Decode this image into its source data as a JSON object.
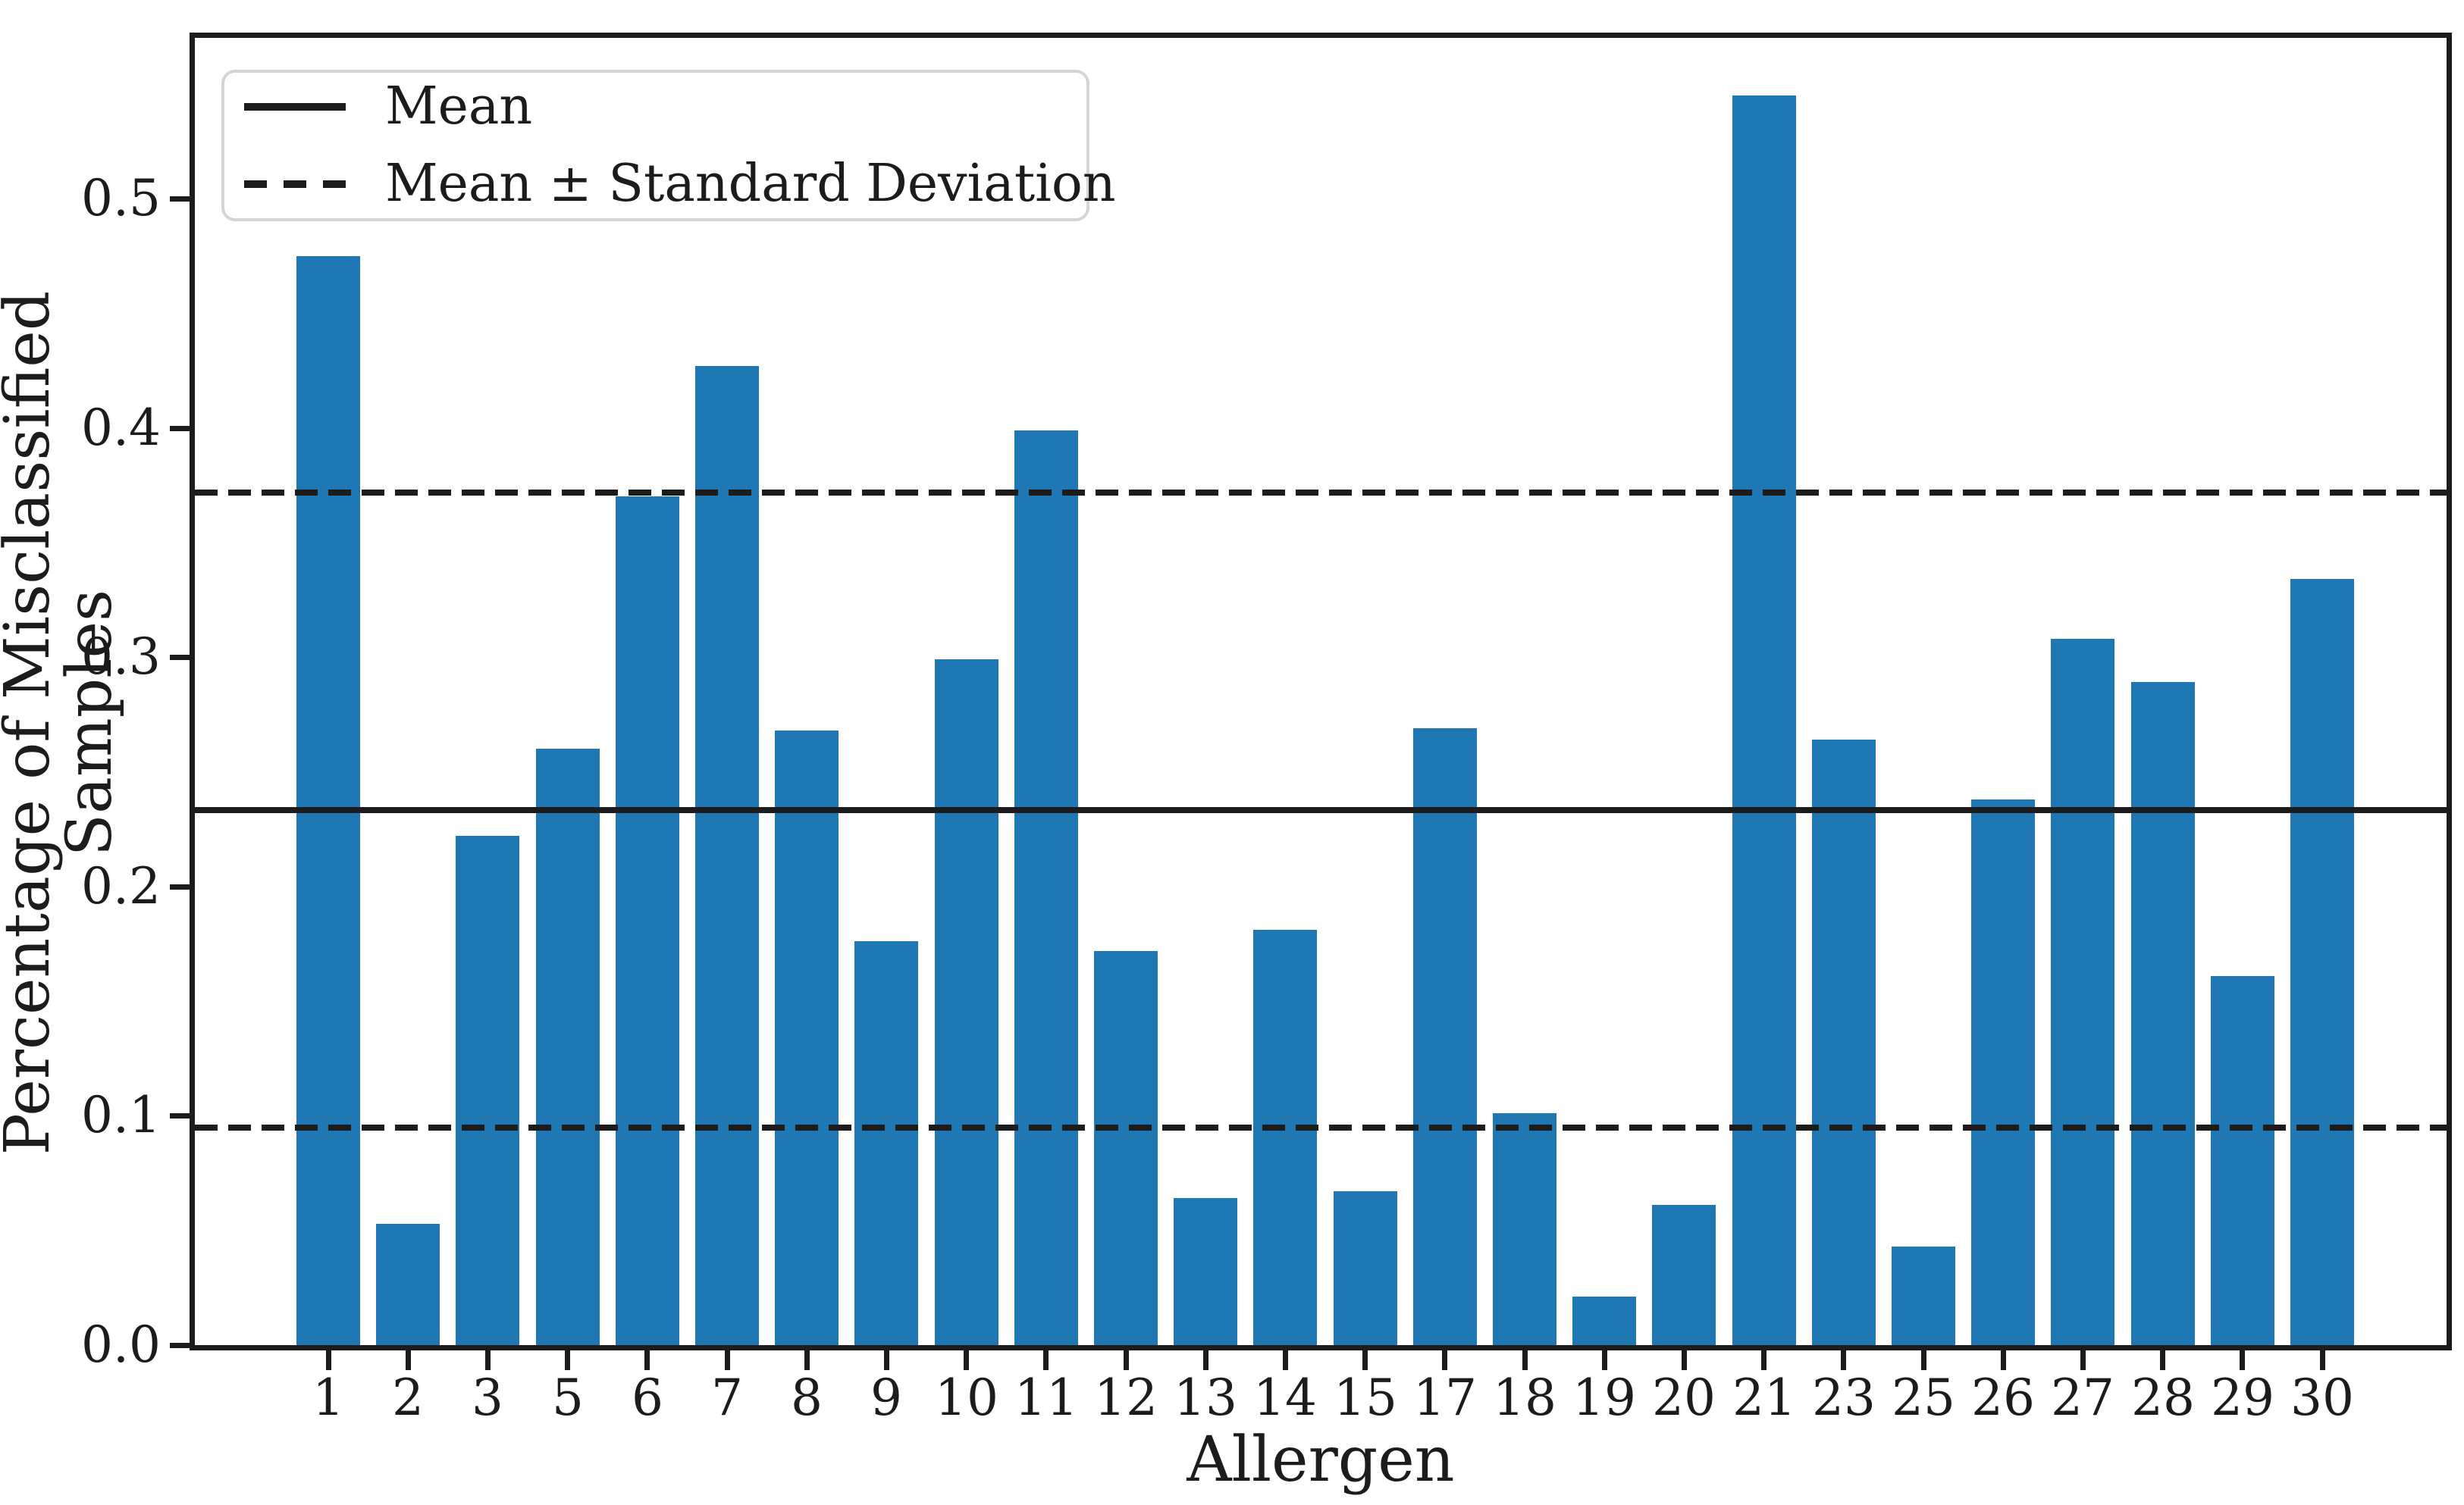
{
  "figure": {
    "xlabel": "Allergen",
    "ylabel": "Percentage of Misclassified Samples",
    "legend": {
      "mean_label": "Mean",
      "std_label": "Mean ± Standard Deviation"
    }
  },
  "chart_data": {
    "type": "bar",
    "title": "",
    "xlabel": "Allergen",
    "ylabel": "Percentage of Misclassified Samples",
    "categories": [
      "1",
      "2",
      "3",
      "5",
      "6",
      "7",
      "8",
      "9",
      "10",
      "11",
      "12",
      "13",
      "14",
      "15",
      "17",
      "18",
      "19",
      "20",
      "21",
      "23",
      "25",
      "26",
      "27",
      "28",
      "29",
      "30"
    ],
    "values": [
      0.475,
      0.053,
      0.222,
      0.26,
      0.37,
      0.427,
      0.268,
      0.176,
      0.299,
      0.399,
      0.172,
      0.064,
      0.181,
      0.067,
      0.269,
      0.101,
      0.021,
      0.061,
      0.545,
      0.264,
      0.043,
      0.238,
      0.308,
      0.289,
      0.161,
      0.334
    ],
    "mean": 0.2334,
    "std": 0.1385,
    "mean_plus_std": 0.3719,
    "mean_minus_std": 0.0949,
    "y_ticks": [
      0.0,
      0.1,
      0.2,
      0.3,
      0.4,
      0.5
    ],
    "ylim": [
      0.0,
      0.572
    ],
    "legend_entries": [
      {
        "label": "Mean",
        "style": "solid"
      },
      {
        "label": "Mean ± Standard Deviation",
        "style": "dashed"
      }
    ],
    "legend_position": "upper left",
    "grid": false,
    "bar_color": "#1f77b4",
    "line_color": "#1c1c1c"
  }
}
